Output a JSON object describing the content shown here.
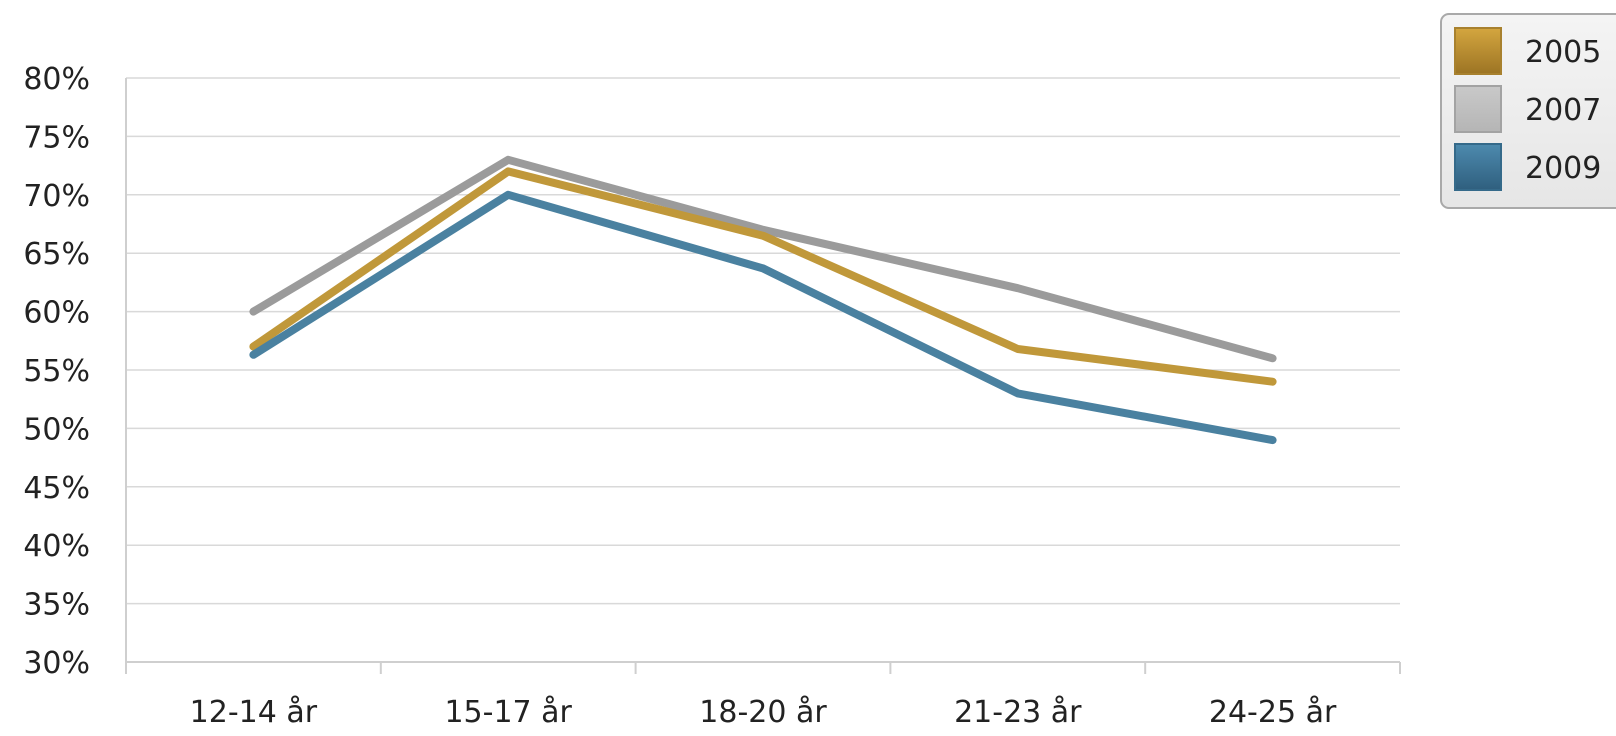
{
  "chart_data": {
    "type": "line",
    "title": "",
    "xlabel": "",
    "ylabel": "",
    "categories": [
      "12-14 år",
      "15-17 år",
      "18-20 år",
      "21-23 år",
      "24-25 år"
    ],
    "ylim": [
      30,
      80
    ],
    "yticks": [
      "30%",
      "35%",
      "40%",
      "45%",
      "50%",
      "55%",
      "60%",
      "65%",
      "70%",
      "75%",
      "80%"
    ],
    "grid": true,
    "legend_position": "top-right",
    "series": [
      {
        "name": "2005",
        "color": "#C0983A",
        "values": [
          57,
          72,
          66.5,
          56.8,
          54
        ]
      },
      {
        "name": "2007",
        "color": "#9B9B9B",
        "values": [
          60,
          73,
          67,
          62,
          56
        ]
      },
      {
        "name": "2009",
        "color": "#4A81A0",
        "values": [
          56.3,
          70,
          63.7,
          53,
          49
        ]
      }
    ]
  }
}
